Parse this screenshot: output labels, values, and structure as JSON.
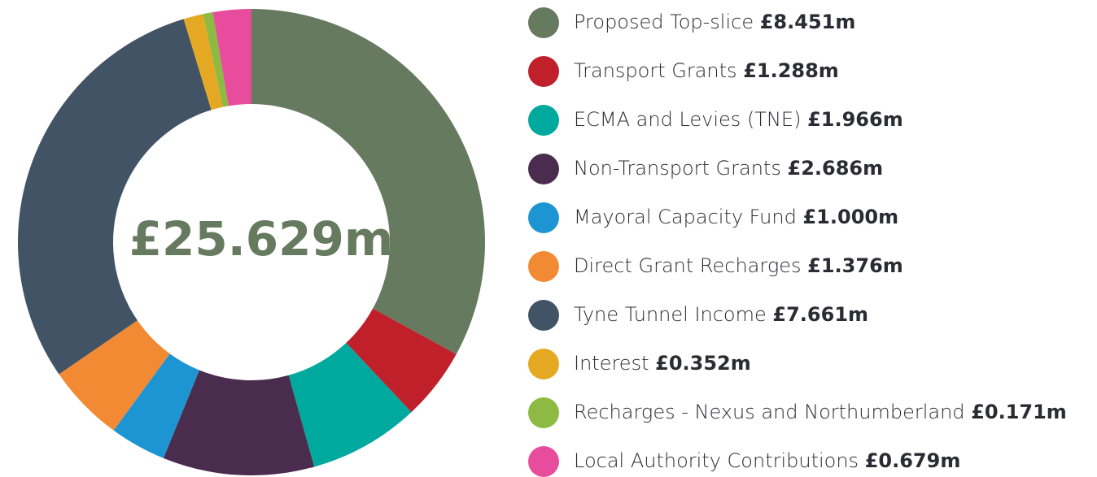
{
  "chart_data": {
    "type": "pie",
    "donut": true,
    "center_label": "£25.629m",
    "categories": [
      "Proposed Top-slice",
      "Transport Grants",
      "ECMA and Levies (TNE)",
      "Non-Transport Grants",
      "Mayoral Capacity Fund",
      "Direct Grant Recharges",
      "Tyne Tunnel Income",
      "Interest",
      "Recharges - Nexus and Northumberland",
      "Local Authority Contributions"
    ],
    "values": [
      8.451,
      1.288,
      1.966,
      2.686,
      1.0,
      1.376,
      7.661,
      0.352,
      0.171,
      0.679
    ],
    "value_labels": [
      "£8.451m",
      "£1.288m",
      "£1.966m",
      "£2.686m",
      "£1.000m",
      "£1.376m",
      "£7.661m",
      "£0.352m",
      "£0.171m",
      "£0.679m"
    ],
    "colors": [
      "#667a60",
      "#c0202a",
      "#00a99d",
      "#4a2d4e",
      "#1e95d3",
      "#f28a33",
      "#425366",
      "#e5a823",
      "#8cba42",
      "#e84c9c"
    ],
    "legend": "right"
  }
}
